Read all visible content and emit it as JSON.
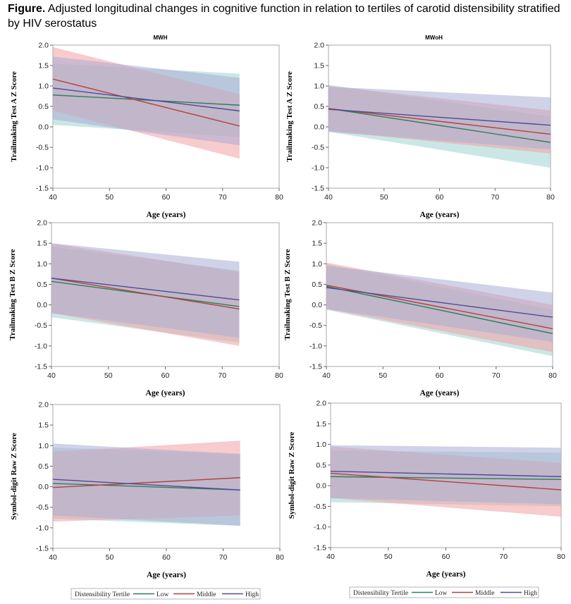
{
  "caption": {
    "label": "Figure.",
    "text": " Adjusted longitudinal changes in cognitive function in relation to tertiles of carotid distensibility stratified by HIV serostatus"
  },
  "colors": {
    "Low": "#2e7d58",
    "Middle": "#b0443c",
    "High": "#4c4c94",
    "band_Low": "#9fd4cf",
    "band_Middle": "#f2a0a4",
    "band_High": "#a9add4"
  },
  "legend": {
    "title": "Distensibility Tertile",
    "items": [
      "Low",
      "Middle",
      "High"
    ]
  },
  "chart_data": [
    {
      "type": "line",
      "panel": "A-MWH",
      "title": "MWH",
      "xlabel": "Age (years)",
      "ylabel": "Trailmaking Test A Z Score",
      "xlim": [
        40,
        80
      ],
      "ylim": [
        -1.5,
        2.0
      ],
      "xticks": [
        40,
        50,
        60,
        70,
        80
      ],
      "yticks": [
        -1.5,
        -1.0,
        -0.5,
        0.0,
        0.5,
        1.0,
        1.5,
        2.0
      ],
      "x": [
        40,
        73
      ],
      "series": [
        {
          "name": "Low",
          "values": [
            0.78,
            0.53
          ],
          "lower": [
            0.05,
            -0.25
          ],
          "upper": [
            1.55,
            1.3
          ]
        },
        {
          "name": "Middle",
          "values": [
            1.17,
            0.02
          ],
          "lower": [
            0.4,
            -0.78
          ],
          "upper": [
            1.95,
            0.8
          ]
        },
        {
          "name": "High",
          "values": [
            0.95,
            0.39
          ],
          "lower": [
            0.18,
            -0.45
          ],
          "upper": [
            1.72,
            1.2
          ]
        }
      ]
    },
    {
      "type": "line",
      "panel": "A-MWoH",
      "title": "MWoH",
      "xlabel": "Age (years)",
      "ylabel": "Trailmaking Test A Z Score",
      "xlim": [
        40,
        80
      ],
      "ylim": [
        -1.5,
        2.0
      ],
      "xticks": [
        40,
        50,
        60,
        70,
        80
      ],
      "yticks": [
        -1.5,
        -1.0,
        -0.5,
        0.0,
        0.5,
        1.0,
        1.5,
        2.0
      ],
      "x": [
        40,
        80
      ],
      "series": [
        {
          "name": "Low",
          "values": [
            0.45,
            -0.38
          ],
          "lower": [
            -0.12,
            -1.0
          ],
          "upper": [
            1.03,
            0.25
          ]
        },
        {
          "name": "Middle",
          "values": [
            0.45,
            -0.18
          ],
          "lower": [
            -0.1,
            -0.65
          ],
          "upper": [
            1.0,
            0.4
          ]
        },
        {
          "name": "High",
          "values": [
            0.43,
            0.04
          ],
          "lower": [
            -0.12,
            -0.55
          ],
          "upper": [
            0.98,
            0.72
          ]
        }
      ]
    },
    {
      "type": "line",
      "panel": "B-MWH",
      "title": "",
      "xlabel": "Age (years)",
      "ylabel": "Trailmaking Test B Z Score",
      "xlim": [
        40,
        80
      ],
      "ylim": [
        -1.5,
        2.0
      ],
      "xticks": [
        40,
        50,
        60,
        70,
        80
      ],
      "yticks": [
        -1.5,
        -1.0,
        -0.5,
        0.0,
        0.5,
        1.0,
        1.5,
        2.0
      ],
      "x": [
        40,
        73
      ],
      "series": [
        {
          "name": "Low",
          "values": [
            0.57,
            -0.04
          ],
          "lower": [
            -0.3,
            -0.92
          ],
          "upper": [
            1.42,
            0.83
          ]
        },
        {
          "name": "Middle",
          "values": [
            0.65,
            -0.1
          ],
          "lower": [
            -0.2,
            -1.0
          ],
          "upper": [
            1.5,
            0.8
          ]
        },
        {
          "name": "High",
          "values": [
            0.65,
            0.12
          ],
          "lower": [
            -0.2,
            -0.8
          ],
          "upper": [
            1.5,
            1.05
          ]
        }
      ]
    },
    {
      "type": "line",
      "panel": "B-MWoH",
      "title": "",
      "xlabel": "Age (years)",
      "ylabel": "Trailmaking Test B Z Score",
      "xlim": [
        40,
        80
      ],
      "ylim": [
        -1.5,
        2.0
      ],
      "xticks": [
        40,
        50,
        60,
        70,
        80
      ],
      "yticks": [
        -1.5,
        -1.0,
        -0.5,
        0.0,
        0.5,
        1.0,
        1.5,
        2.0
      ],
      "x": [
        40,
        80
      ],
      "series": [
        {
          "name": "Low",
          "values": [
            0.45,
            -0.7
          ],
          "lower": [
            -0.12,
            -1.25
          ],
          "upper": [
            1.0,
            -0.12
          ]
        },
        {
          "name": "Middle",
          "values": [
            0.48,
            -0.58
          ],
          "lower": [
            -0.1,
            -1.15
          ],
          "upper": [
            1.03,
            0.0
          ]
        },
        {
          "name": "High",
          "values": [
            0.42,
            -0.3
          ],
          "lower": [
            -0.1,
            -0.9
          ],
          "upper": [
            0.95,
            0.3
          ]
        }
      ]
    },
    {
      "type": "line",
      "panel": "S-MWH",
      "title": "",
      "xlabel": "Age (years)",
      "ylabel": "Symbol-digit Raw Z Score",
      "xlim": [
        40,
        80
      ],
      "ylim": [
        -1.5,
        2.0
      ],
      "xticks": [
        40,
        50,
        60,
        70,
        80
      ],
      "yticks": [
        -1.5,
        -1.0,
        -0.5,
        0.0,
        0.5,
        1.0,
        1.5,
        2.0
      ],
      "x": [
        40,
        73
      ],
      "series": [
        {
          "name": "Low",
          "values": [
            0.08,
            -0.08
          ],
          "lower": [
            -0.78,
            -0.95
          ],
          "upper": [
            0.95,
            0.8
          ]
        },
        {
          "name": "Middle",
          "values": [
            -0.02,
            0.22
          ],
          "lower": [
            -0.85,
            -0.7
          ],
          "upper": [
            0.85,
            1.12
          ]
        },
        {
          "name": "High",
          "values": [
            0.18,
            -0.08
          ],
          "lower": [
            -0.7,
            -0.95
          ],
          "upper": [
            1.05,
            0.8
          ]
        }
      ]
    },
    {
      "type": "line",
      "panel": "S-MWoH",
      "title": "",
      "xlabel": "Age (years)",
      "ylabel": "Symbol-digit Raw Z Score",
      "xlim": [
        40,
        80
      ],
      "ylim": [
        -1.5,
        2.0
      ],
      "xticks": [
        40,
        50,
        60,
        70,
        80
      ],
      "yticks": [
        -1.5,
        -1.0,
        -0.5,
        0.0,
        0.5,
        1.0,
        1.5,
        2.0
      ],
      "x": [
        40,
        80
      ],
      "series": [
        {
          "name": "Low",
          "values": [
            0.22,
            0.15
          ],
          "lower": [
            -0.4,
            -0.5
          ],
          "upper": [
            0.85,
            0.8
          ]
        },
        {
          "name": "Middle",
          "values": [
            0.3,
            -0.1
          ],
          "lower": [
            -0.3,
            -0.75
          ],
          "upper": [
            0.95,
            0.55
          ]
        },
        {
          "name": "High",
          "values": [
            0.35,
            0.22
          ],
          "lower": [
            -0.3,
            -0.45
          ],
          "upper": [
            0.98,
            0.92
          ]
        }
      ]
    }
  ]
}
